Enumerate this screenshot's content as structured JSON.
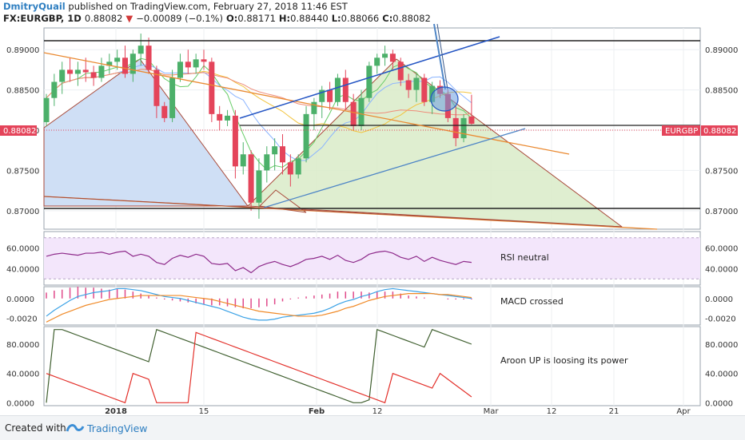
{
  "header": {
    "author": "DmitryQuail",
    "published": "published on TradingView.com, February 27, 2018 11:46 EST",
    "symbol": "FX:EURGBP, 1D",
    "last": "0.88082",
    "change_arrow": "▼",
    "change": "−0.00089 (−0.1%)",
    "o_label": "O:",
    "o": "0.88171",
    "h_label": "H:",
    "h": "0.88440",
    "l_label": "L:",
    "l": "0.88066",
    "c_label": "C:",
    "c": "0.88082"
  },
  "footer": {
    "created": "Created with",
    "brand": "TradingView"
  },
  "colors": {
    "up": "#4cb06a",
    "down": "#e4445a",
    "rsi": "#8e2b8b",
    "macd_line": "#3ba2e6",
    "macd_signal": "#f08a28",
    "aroon_up": "#3f5f2f",
    "aroon_down": "#e3312b",
    "price_tag": "#e4445a",
    "ma1": "#66cc66",
    "ma2": "#f2c33c",
    "ma3": "#ee8c7a",
    "ma4": "#8ab4ff"
  },
  "chart_data": [
    {
      "type": "candlestick",
      "symbol": "EURGBP",
      "price_tag": "0.88082",
      "ylim": [
        0.8677,
        0.8927
      ],
      "yticks": [
        "0.89000",
        "0.88500",
        "0.88000",
        "0.87500",
        "0.87000"
      ],
      "xtick_labels": [
        "2018",
        "15",
        "Feb",
        "12",
        "Mar",
        "12",
        "21",
        "Apr"
      ],
      "candles": [
        {
          "o": 0.881,
          "h": 0.8845,
          "l": 0.8805,
          "c": 0.884
        },
        {
          "o": 0.884,
          "h": 0.887,
          "l": 0.883,
          "c": 0.886
        },
        {
          "o": 0.886,
          "h": 0.8885,
          "l": 0.8845,
          "c": 0.8875
        },
        {
          "o": 0.8875,
          "h": 0.889,
          "l": 0.886,
          "c": 0.887
        },
        {
          "o": 0.887,
          "h": 0.8885,
          "l": 0.8855,
          "c": 0.8875
        },
        {
          "o": 0.8875,
          "h": 0.889,
          "l": 0.886,
          "c": 0.8872
        },
        {
          "o": 0.8872,
          "h": 0.888,
          "l": 0.8855,
          "c": 0.8865
        },
        {
          "o": 0.8865,
          "h": 0.889,
          "l": 0.886,
          "c": 0.888
        },
        {
          "o": 0.888,
          "h": 0.8895,
          "l": 0.887,
          "c": 0.8885
        },
        {
          "o": 0.8885,
          "h": 0.89,
          "l": 0.8875,
          "c": 0.889
        },
        {
          "o": 0.889,
          "h": 0.8905,
          "l": 0.8865,
          "c": 0.887
        },
        {
          "o": 0.887,
          "h": 0.89,
          "l": 0.886,
          "c": 0.8895
        },
        {
          "o": 0.8895,
          "h": 0.892,
          "l": 0.888,
          "c": 0.8905
        },
        {
          "o": 0.8905,
          "h": 0.8915,
          "l": 0.887,
          "c": 0.8875
        },
        {
          "o": 0.8875,
          "h": 0.888,
          "l": 0.8815,
          "c": 0.883
        },
        {
          "o": 0.883,
          "h": 0.8835,
          "l": 0.881,
          "c": 0.8815
        },
        {
          "o": 0.8815,
          "h": 0.8875,
          "l": 0.881,
          "c": 0.8865
        },
        {
          "o": 0.8865,
          "h": 0.8895,
          "l": 0.886,
          "c": 0.8885
        },
        {
          "o": 0.8885,
          "h": 0.89,
          "l": 0.887,
          "c": 0.8878
        },
        {
          "o": 0.8878,
          "h": 0.8895,
          "l": 0.887,
          "c": 0.8888
        },
        {
          "o": 0.8888,
          "h": 0.89,
          "l": 0.8875,
          "c": 0.8885
        },
        {
          "o": 0.8885,
          "h": 0.889,
          "l": 0.881,
          "c": 0.882
        },
        {
          "o": 0.882,
          "h": 0.883,
          "l": 0.88,
          "c": 0.8812
        },
        {
          "o": 0.8812,
          "h": 0.8825,
          "l": 0.8805,
          "c": 0.8818
        },
        {
          "o": 0.8818,
          "h": 0.8825,
          "l": 0.874,
          "c": 0.8755
        },
        {
          "o": 0.8755,
          "h": 0.8785,
          "l": 0.8745,
          "c": 0.877
        },
        {
          "o": 0.877,
          "h": 0.8775,
          "l": 0.87,
          "c": 0.871
        },
        {
          "o": 0.871,
          "h": 0.8765,
          "l": 0.869,
          "c": 0.875
        },
        {
          "o": 0.875,
          "h": 0.878,
          "l": 0.8735,
          "c": 0.877
        },
        {
          "o": 0.877,
          "h": 0.879,
          "l": 0.875,
          "c": 0.878
        },
        {
          "o": 0.878,
          "h": 0.8795,
          "l": 0.8745,
          "c": 0.876
        },
        {
          "o": 0.876,
          "h": 0.877,
          "l": 0.873,
          "c": 0.8745
        },
        {
          "o": 0.8745,
          "h": 0.877,
          "l": 0.874,
          "c": 0.8765
        },
        {
          "o": 0.8765,
          "h": 0.883,
          "l": 0.876,
          "c": 0.882
        },
        {
          "o": 0.882,
          "h": 0.884,
          "l": 0.88,
          "c": 0.8835
        },
        {
          "o": 0.8835,
          "h": 0.8855,
          "l": 0.8815,
          "c": 0.885
        },
        {
          "o": 0.885,
          "h": 0.886,
          "l": 0.8825,
          "c": 0.8835
        },
        {
          "o": 0.8835,
          "h": 0.887,
          "l": 0.883,
          "c": 0.8865
        },
        {
          "o": 0.8865,
          "h": 0.8875,
          "l": 0.8825,
          "c": 0.8835
        },
        {
          "o": 0.8835,
          "h": 0.8845,
          "l": 0.88,
          "c": 0.8805
        },
        {
          "o": 0.8805,
          "h": 0.885,
          "l": 0.88,
          "c": 0.884
        },
        {
          "o": 0.884,
          "h": 0.8885,
          "l": 0.8835,
          "c": 0.888
        },
        {
          "o": 0.888,
          "h": 0.8895,
          "l": 0.887,
          "c": 0.889
        },
        {
          "o": 0.889,
          "h": 0.8905,
          "l": 0.888,
          "c": 0.8895
        },
        {
          "o": 0.8895,
          "h": 0.89,
          "l": 0.8875,
          "c": 0.8885
        },
        {
          "o": 0.8885,
          "h": 0.889,
          "l": 0.8855,
          "c": 0.8862
        },
        {
          "o": 0.8862,
          "h": 0.887,
          "l": 0.884,
          "c": 0.885
        },
        {
          "o": 0.885,
          "h": 0.887,
          "l": 0.8835,
          "c": 0.8865
        },
        {
          "o": 0.8865,
          "h": 0.887,
          "l": 0.883,
          "c": 0.8835
        },
        {
          "o": 0.8835,
          "h": 0.886,
          "l": 0.882,
          "c": 0.8855
        },
        {
          "o": 0.8855,
          "h": 0.8862,
          "l": 0.884,
          "c": 0.8845
        },
        {
          "o": 0.8845,
          "h": 0.885,
          "l": 0.881,
          "c": 0.8815
        },
        {
          "o": 0.8815,
          "h": 0.883,
          "l": 0.878,
          "c": 0.879
        },
        {
          "o": 0.879,
          "h": 0.882,
          "l": 0.8785,
          "c": 0.8815
        },
        {
          "o": 0.8817,
          "h": 0.8844,
          "l": 0.8807,
          "c": 0.8808
        }
      ]
    },
    {
      "type": "line",
      "name": "RSI",
      "label": "RSI neutral",
      "yticks": [
        "60.0000",
        "40.0000"
      ],
      "ylim": [
        24,
        76
      ],
      "band": [
        30,
        70
      ],
      "values": [
        52,
        54,
        55,
        54,
        53,
        55,
        55,
        56,
        54,
        56,
        57,
        52,
        54,
        52,
        46,
        44,
        50,
        53,
        51,
        54,
        52,
        45,
        44,
        45,
        38,
        41,
        36,
        42,
        45,
        47,
        44,
        42,
        45,
        49,
        50,
        52,
        49,
        53,
        48,
        46,
        49,
        54,
        56,
        57,
        55,
        51,
        49,
        52,
        47,
        51,
        48,
        46,
        44,
        47,
        46
      ]
    },
    {
      "type": "line",
      "name": "MACD",
      "label": "MACD crossed",
      "yticks": [
        "0.0000",
        "-0.0020"
      ],
      "ylim": [
        -0.0027,
        0.0012
      ],
      "macd": [
        -0.0018,
        -0.0012,
        -0.0007,
        -0.0002,
        0.0002,
        0.0004,
        0.0006,
        0.0007,
        0.0008,
        0.001,
        0.001,
        0.0009,
        0.0008,
        0.0006,
        0.0004,
        0.0002,
        0.0001,
        0.0,
        -0.0002,
        -0.0004,
        -0.0006,
        -0.0008,
        -0.001,
        -0.0013,
        -0.0016,
        -0.0019,
        -0.0021,
        -0.0022,
        -0.0022,
        -0.0021,
        -0.0019,
        -0.0018,
        -0.0017,
        -0.0016,
        -0.0015,
        -0.0013,
        -0.001,
        -0.0006,
        -0.0003,
        -0.0001,
        0.0002,
        0.0004,
        0.0007,
        0.0009,
        0.001,
        0.0009,
        0.0008,
        0.0007,
        0.0006,
        0.0005,
        0.0004,
        0.0003,
        0.0002,
        0.0001,
        0.0
      ],
      "signal": [
        -0.0024,
        -0.002,
        -0.0016,
        -0.0013,
        -0.001,
        -0.0007,
        -0.0005,
        -0.0003,
        -0.0001,
        0.0,
        0.0001,
        0.0002,
        0.0003,
        0.0003,
        0.0003,
        0.0003,
        0.0003,
        0.0003,
        0.0002,
        0.0001,
        0.0,
        -0.0001,
        -0.0003,
        -0.0005,
        -0.0007,
        -0.0009,
        -0.0011,
        -0.0013,
        -0.0014,
        -0.0015,
        -0.0016,
        -0.0017,
        -0.0018,
        -0.0018,
        -0.0018,
        -0.0017,
        -0.0015,
        -0.0013,
        -0.001,
        -0.0008,
        -0.0005,
        -0.0002,
        0.0,
        0.0002,
        0.0003,
        0.0004,
        0.0005,
        0.0005,
        0.0005,
        0.0005,
        0.0004,
        0.0004,
        0.0003,
        0.0002,
        0.0001
      ]
    },
    {
      "type": "line",
      "name": "Aroon",
      "label": "Aroon UP is loosing its power",
      "yticks": [
        "80.0000",
        "40.0000",
        "0.0000"
      ],
      "ylim": [
        -4,
        104
      ],
      "up": [
        0,
        100,
        100,
        96,
        92,
        88,
        84,
        80,
        76,
        72,
        68,
        64,
        60,
        56,
        100,
        96,
        92,
        88,
        84,
        80,
        76,
        72,
        68,
        64,
        60,
        56,
        52,
        48,
        44,
        40,
        36,
        32,
        28,
        24,
        20,
        16,
        12,
        8,
        4,
        0,
        0,
        4,
        100,
        96,
        92,
        88,
        84,
        80,
        76,
        100,
        96,
        92,
        88,
        84,
        80
      ],
      "down": [
        40,
        36,
        32,
        28,
        24,
        20,
        16,
        12,
        8,
        4,
        0,
        40,
        36,
        32,
        0,
        0,
        0,
        0,
        0,
        96,
        92,
        88,
        84,
        80,
        76,
        72,
        68,
        64,
        60,
        56,
        52,
        48,
        44,
        40,
        36,
        32,
        28,
        24,
        20,
        16,
        12,
        8,
        4,
        0,
        40,
        36,
        32,
        28,
        24,
        20,
        40,
        32,
        24,
        16,
        8
      ]
    }
  ]
}
